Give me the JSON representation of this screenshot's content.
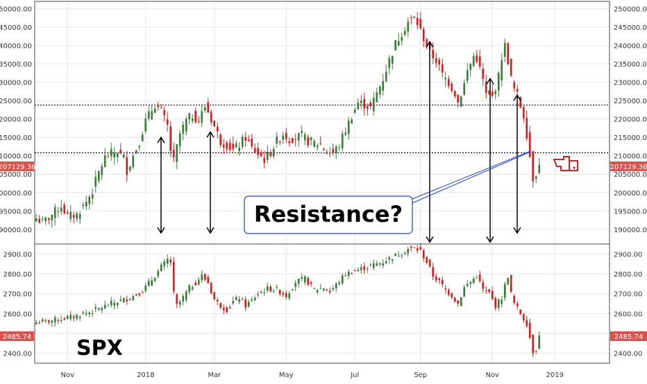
{
  "colors": {
    "up": "#3a7d3a",
    "down": "#d11f1f",
    "axis_text": "#333333",
    "grid": "#e6e6e6",
    "frame": "#444444",
    "callout_border": "#1f3fd1",
    "price_tag": "#d9534f",
    "badge_primary": "#000000",
    "arrow": "#000000"
  },
  "chart_data": [
    {
      "type": "candlestick",
      "title": "",
      "ylim": [
        186000,
        252000
      ],
      "y_ticks": [
        "190000.00",
        "195000.00",
        "200000.00",
        "205000.00",
        "210000.00",
        "215000.00",
        "220000.00",
        "225000.00",
        "230000.00",
        "235000.00",
        "240000.00",
        "245000.00",
        "250000.00"
      ],
      "y_tick_values": [
        190000,
        195000,
        200000,
        205000,
        210000,
        215000,
        220000,
        225000,
        230000,
        235000,
        240000,
        245000,
        250000
      ],
      "last_price_label": "207129.36",
      "last_price": 207129.36,
      "horizontal_levels": [
        223800,
        210800
      ],
      "shape_points": [
        [
          0,
          193000
        ],
        [
          2,
          191800
        ],
        [
          5,
          194000
        ],
        [
          8,
          196500
        ],
        [
          10,
          193500
        ],
        [
          13,
          194000
        ],
        [
          16,
          197500
        ],
        [
          18,
          200500
        ],
        [
          20,
          205500
        ],
        [
          22,
          209500
        ],
        [
          24,
          210500
        ],
        [
          26,
          211200
        ],
        [
          28,
          209500
        ],
        [
          29,
          206000
        ],
        [
          31,
          210000
        ],
        [
          33,
          214000
        ],
        [
          35,
          219500
        ],
        [
          37,
          222500
        ],
        [
          38,
          224000
        ],
        [
          40,
          222000
        ],
        [
          42,
          218000
        ],
        [
          43,
          211500
        ],
        [
          44,
          208500
        ],
        [
          46,
          216000
        ],
        [
          48,
          219500
        ],
        [
          50,
          221000
        ],
        [
          52,
          219500
        ],
        [
          54,
          223500
        ],
        [
          55,
          222000
        ],
        [
          57,
          218000
        ],
        [
          59,
          214000
        ],
        [
          61,
          213000
        ],
        [
          63,
          211500
        ],
        [
          65,
          213000
        ],
        [
          67,
          215000
        ],
        [
          69,
          212000
        ],
        [
          71,
          210500
        ],
        [
          73,
          209000
        ],
        [
          75,
          211000
        ],
        [
          77,
          214000
        ],
        [
          79,
          216000
        ],
        [
          81,
          214500
        ],
        [
          83,
          215000
        ],
        [
          85,
          215500
        ],
        [
          87,
          214000
        ],
        [
          89,
          213500
        ],
        [
          91,
          213000
        ],
        [
          93,
          211000
        ],
        [
          95,
          210800
        ],
        [
          97,
          213000
        ],
        [
          99,
          217000
        ],
        [
          101,
          221000
        ],
        [
          103,
          224500
        ],
        [
          105,
          224000
        ],
        [
          107,
          223000
        ],
        [
          109,
          227000
        ],
        [
          111,
          231000
        ],
        [
          113,
          236000
        ],
        [
          115,
          240500
        ],
        [
          117,
          243500
        ],
        [
          119,
          246500
        ],
        [
          121,
          247500
        ],
        [
          122,
          246000
        ],
        [
          124,
          242000
        ],
        [
          126,
          238000
        ],
        [
          128,
          236000
        ],
        [
          130,
          232000
        ],
        [
          132,
          230000
        ],
        [
          134,
          227000
        ],
        [
          135,
          224500
        ],
        [
          137,
          229500
        ],
        [
          138,
          233000
        ],
        [
          140,
          237000
        ],
        [
          141,
          236500
        ],
        [
          143,
          230500
        ],
        [
          144,
          226500
        ],
        [
          146,
          226000
        ],
        [
          148,
          231500
        ],
        [
          149,
          237000
        ],
        [
          150,
          240000
        ],
        [
          151,
          236000
        ],
        [
          152,
          231000
        ],
        [
          153,
          228000
        ],
        [
          154,
          226500
        ],
        [
          155,
          223500
        ],
        [
          156,
          221000
        ],
        [
          157,
          216000
        ],
        [
          158,
          210000
        ],
        [
          159,
          204000
        ],
        [
          160,
          205500
        ],
        [
          161,
          207129
        ]
      ],
      "n_candles": 162,
      "annotation_text": "Resistance?"
    },
    {
      "type": "candlestick",
      "title": "SPX",
      "ylim": [
        2350,
        2950
      ],
      "y_ticks": [
        "2400.00",
        "2500.00",
        "2600.00",
        "2700.00",
        "2800.00",
        "2900.00"
      ],
      "y_tick_values": [
        2400,
        2500,
        2600,
        2700,
        2800,
        2900
      ],
      "last_price_label": "2485.74",
      "last_price": 2485.74,
      "shape_points": [
        [
          0,
          2555
        ],
        [
          6,
          2568
        ],
        [
          12,
          2585
        ],
        [
          18,
          2612
        ],
        [
          24,
          2650
        ],
        [
          30,
          2680
        ],
        [
          34,
          2715
        ],
        [
          38,
          2790
        ],
        [
          40,
          2835
        ],
        [
          42,
          2870
        ],
        [
          43,
          2860
        ],
        [
          44,
          2700
        ],
        [
          45,
          2640
        ],
        [
          47,
          2680
        ],
        [
          49,
          2730
        ],
        [
          51,
          2755
        ],
        [
          53,
          2790
        ],
        [
          55,
          2755
        ],
        [
          57,
          2670
        ],
        [
          59,
          2640
        ],
        [
          61,
          2620
        ],
        [
          63,
          2660
        ],
        [
          65,
          2680
        ],
        [
          67,
          2640
        ],
        [
          69,
          2665
        ],
        [
          71,
          2700
        ],
        [
          74,
          2725
        ],
        [
          77,
          2720
        ],
        [
          80,
          2690
        ],
        [
          83,
          2760
        ],
        [
          86,
          2775
        ],
        [
          89,
          2720
        ],
        [
          92,
          2730
        ],
        [
          94,
          2710
        ],
        [
          96,
          2745
        ],
        [
          99,
          2800
        ],
        [
          102,
          2815
        ],
        [
          105,
          2830
        ],
        [
          108,
          2845
        ],
        [
          111,
          2860
        ],
        [
          114,
          2885
        ],
        [
          117,
          2905
        ],
        [
          119,
          2925
        ],
        [
          121,
          2928
        ],
        [
          123,
          2915
        ],
        [
          125,
          2860
        ],
        [
          127,
          2790
        ],
        [
          129,
          2760
        ],
        [
          131,
          2720
        ],
        [
          133,
          2690
        ],
        [
          135,
          2650
        ],
        [
          137,
          2730
        ],
        [
          139,
          2760
        ],
        [
          141,
          2790
        ],
        [
          143,
          2720
        ],
        [
          145,
          2700
        ],
        [
          147,
          2640
        ],
        [
          149,
          2680
        ],
        [
          150,
          2740
        ],
        [
          151,
          2790
        ],
        [
          152,
          2700
        ],
        [
          153,
          2650
        ],
        [
          155,
          2600
        ],
        [
          157,
          2550
        ],
        [
          158,
          2480
        ],
        [
          159,
          2410
        ],
        [
          160,
          2425
        ],
        [
          161,
          2486
        ]
      ],
      "n_candles": 162
    }
  ],
  "x_axis": {
    "labels": [
      {
        "text": "Nov",
        "index": 10
      },
      {
        "text": "2018",
        "index": 35
      },
      {
        "text": "Mar",
        "index": 57
      },
      {
        "text": "May",
        "index": 80
      },
      {
        "text": "Jul",
        "index": 102
      },
      {
        "text": "Sep",
        "index": 123
      },
      {
        "text": "Nov",
        "index": 146
      },
      {
        "text": "2019",
        "index": 166
      }
    ],
    "index_max": 184
  },
  "annotations": {
    "callout_text": "Resistance?",
    "spx_label": "SPX"
  }
}
